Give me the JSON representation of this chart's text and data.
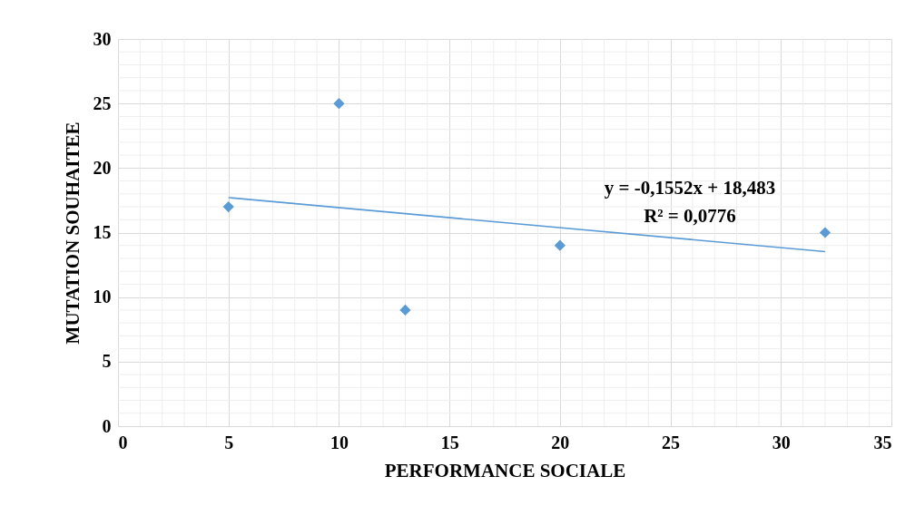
{
  "chart_data": {
    "type": "scatter",
    "xlabel": "PERFORMANCE SOCIALE",
    "ylabel": "MUTATION SOUHAITEE",
    "series": [
      {
        "color": "#5b9bd5",
        "x": [
          5,
          10,
          13,
          20,
          32
        ],
        "values": [
          17,
          25,
          9,
          14,
          15
        ],
        "marker": "diamond"
      },
      {
        "type": "line",
        "color": "#5b9bd5",
        "x": [
          5,
          32
        ],
        "values": [
          17.71,
          13.52
        ],
        "line_style": "solid"
      }
    ],
    "annotations": [
      "y = -0,1552x + 18,483",
      "R² = 0,0776"
    ],
    "xlim": [
      0,
      35
    ],
    "ylim": [
      0,
      30
    ],
    "xticks": [
      0,
      {
        "value": 1,
        "label": null
      },
      {
        "value": 2,
        "label": null
      },
      {
        "value": 3,
        "label": null
      },
      {
        "value": 4,
        "label": null
      },
      5,
      {
        "value": 6,
        "label": null
      },
      {
        "value": 7,
        "label": null
      },
      {
        "value": 8,
        "label": null
      },
      {
        "value": 9,
        "label": null
      },
      10,
      {
        "value": 11,
        "label": null
      },
      {
        "value": 12,
        "label": null
      },
      {
        "value": 13,
        "label": null
      },
      {
        "value": 14,
        "label": null
      },
      15,
      {
        "value": 16,
        "label": null
      },
      {
        "value": 17,
        "label": null
      },
      {
        "value": 18,
        "label": null
      },
      {
        "value": 19,
        "label": null
      },
      20,
      {
        "value": 21,
        "label": null
      },
      {
        "value": 22,
        "label": null
      },
      {
        "value": 23,
        "label": null
      },
      {
        "value": 24,
        "label": null
      },
      25,
      {
        "value": 26,
        "label": null
      },
      {
        "value": 27,
        "label": null
      },
      {
        "value": 28,
        "label": null
      },
      {
        "value": 29,
        "label": null
      },
      30,
      {
        "value": 31,
        "label": null
      },
      {
        "value": 32,
        "label": null
      },
      {
        "value": 33,
        "label": null
      },
      {
        "value": 34,
        "label": null
      },
      35
    ],
    "yticks": [
      0,
      {
        "value": 1,
        "label": null
      },
      {
        "value": 2,
        "label": null
      },
      {
        "value": 3,
        "label": null
      },
      {
        "value": 4,
        "label": null
      },
      5,
      {
        "value": 6,
        "label": null
      },
      {
        "value": 7,
        "label": null
      },
      {
        "value": 8,
        "label": null
      },
      {
        "value": 9,
        "label": null
      },
      10,
      {
        "value": 11,
        "label": null
      },
      {
        "value": 12,
        "label": null
      },
      {
        "value": 13,
        "label": null
      },
      {
        "value": 14,
        "label": null
      },
      15,
      {
        "value": 16,
        "label": null
      },
      {
        "value": 17,
        "label": null
      },
      {
        "value": 18,
        "label": null
      },
      {
        "value": 19,
        "label": null
      },
      20,
      {
        "value": 21,
        "label": null
      },
      {
        "value": 22,
        "label": null
      },
      {
        "value": 23,
        "label": null
      },
      {
        "value": 24,
        "label": null
      },
      25,
      {
        "value": 26,
        "label": null
      },
      {
        "value": 27,
        "label": null
      },
      {
        "value": 28,
        "label": null
      },
      {
        "value": 29,
        "label": null
      },
      30
    ],
    "grid": true
  }
}
